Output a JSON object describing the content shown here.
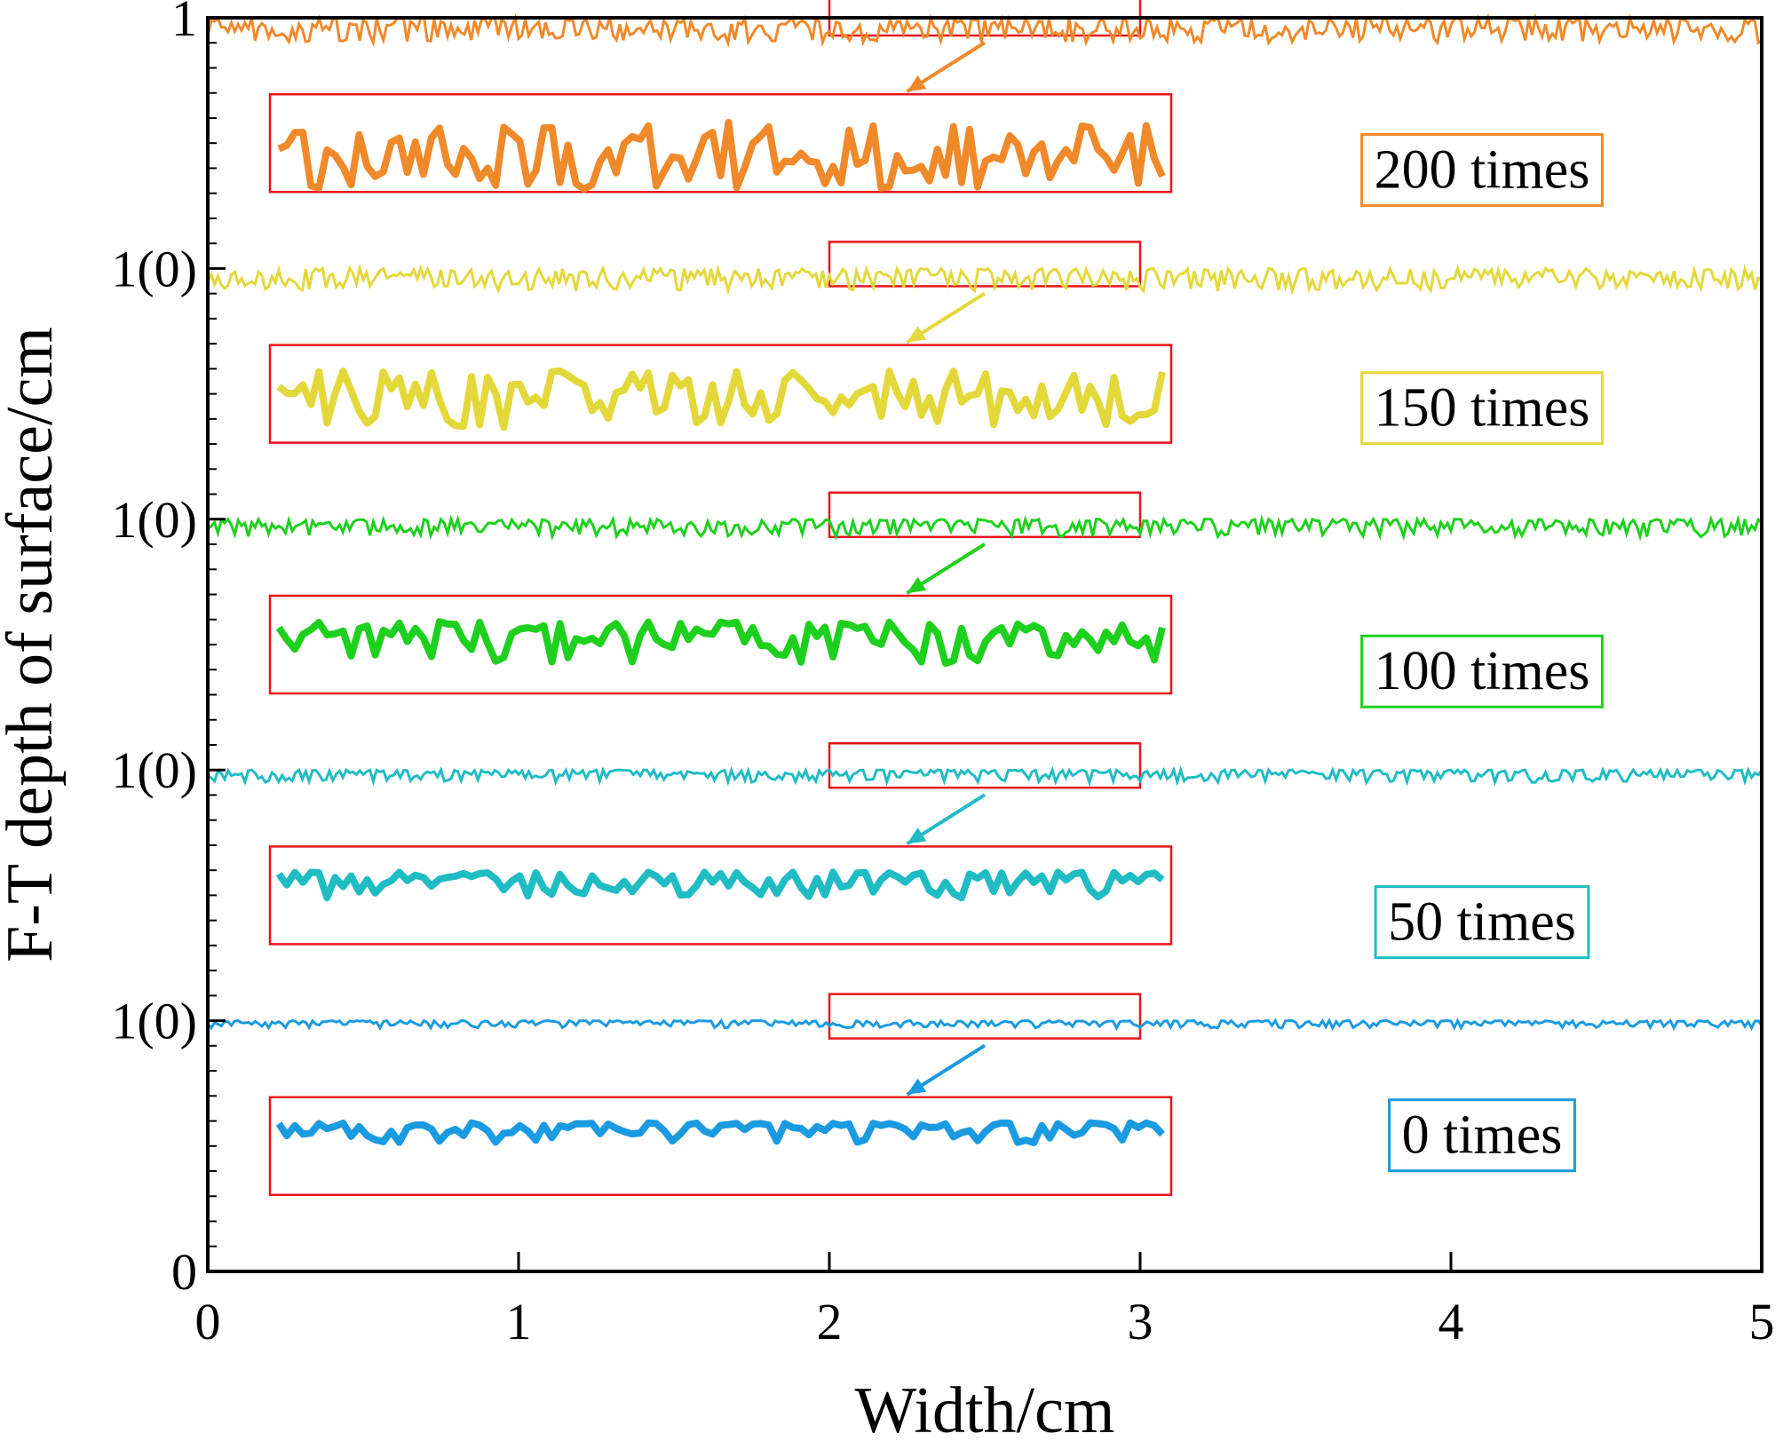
{
  "chart_data": {
    "type": "line",
    "title": "",
    "xlabel": "Width/cm",
    "ylabel": "F-T depth of surface/cm",
    "xlim": [
      0,
      5
    ],
    "ylim": [
      0,
      5
    ],
    "x_ticks": [
      "0",
      "1",
      "2",
      "3",
      "4",
      "5"
    ],
    "y_ticks": [
      "0",
      "1(0)",
      "1(0)",
      "1(0)",
      "1(0)",
      "1"
    ],
    "grid": false,
    "zoom_window": {
      "x_range": [
        2,
        3
      ],
      "description": "enlarged views of the 2–3 cm segment"
    },
    "series": [
      {
        "name": "0 times",
        "color": "#1a9ae0",
        "baseline": 1,
        "amplitude": 0.03,
        "roughness": 0.18,
        "legend_level": 0.55,
        "inset_level": 0.5
      },
      {
        "name": "50 times",
        "color": "#1fbcc4",
        "baseline": 2,
        "amplitude": 0.05,
        "roughness": 0.28,
        "legend_level": 1.4,
        "inset_level": 1.5
      },
      {
        "name": "100 times",
        "color": "#1ed01e",
        "baseline": 3,
        "amplitude": 0.07,
        "roughness": 0.55,
        "legend_level": 2.4,
        "inset_level": 2.5
      },
      {
        "name": "150 times",
        "color": "#e3d83a",
        "baseline": 4,
        "amplitude": 0.09,
        "roughness": 0.8,
        "legend_level": 3.45,
        "inset_level": 3.5
      },
      {
        "name": "200 times",
        "color": "#f0892a",
        "baseline": 5,
        "amplitude": 0.1,
        "roughness": 1.0,
        "legend_level": 4.4,
        "inset_level": 4.5
      }
    ]
  },
  "colors": {
    "frame": "#000000",
    "highlight": "#e8141c"
  }
}
